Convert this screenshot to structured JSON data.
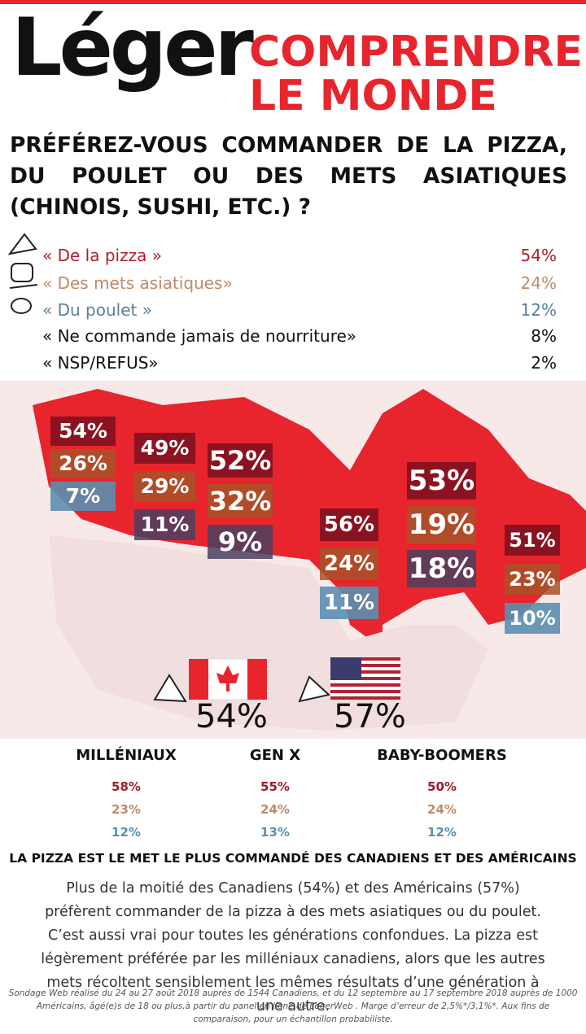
{
  "header": {
    "logo": "Léger",
    "tagline": [
      "COMPRENDRE",
      "LE MONDE"
    ]
  },
  "question": "PRÉFÉREZ-VOUS COMMANDER DE LA PIZZA, DU POULET OU DES METS ASIATIQUES (CHINOIS, SUSHI, ETC.) ?",
  "answers": [
    {
      "label": "« De la pizza »",
      "value": "54%"
    },
    {
      "label": "« Des mets asiatiques»",
      "value": "24%"
    },
    {
      "label": "« Du poulet »",
      "value": "12%"
    },
    {
      "label": "« Ne commande jamais de nourriture»",
      "value": "8%"
    },
    {
      "label": "« NSP/REFUS»",
      "value": "2%"
    }
  ],
  "regions": [
    [
      "54%",
      "26%",
      "7%"
    ],
    [
      "49%",
      "29%",
      "11%"
    ],
    [
      "52%",
      "32%",
      "9%"
    ],
    [
      "56%",
      "24%",
      "11%"
    ],
    [
      "53%",
      "19%",
      "18%"
    ],
    [
      "51%",
      "23%",
      "10%"
    ]
  ],
  "countries": [
    "54%",
    "57%"
  ],
  "generations": [
    {
      "name": "MILLÉNIAUX",
      "values": [
        "58%",
        "23%",
        "12%"
      ]
    },
    {
      "name": "GEN X",
      "values": [
        "55%",
        "24%",
        "13%"
      ]
    },
    {
      "name": "BABY-BOOMERS",
      "values": [
        "50%",
        "24%",
        "12%"
      ]
    }
  ],
  "conclusion": {
    "title": "LA PIZZA EST LE MET LE PLUS COMMANDÉ DES CANADIENS ET DES AMÉRICAINS",
    "text": "Plus de la moitié des Canadiens (54%) et des Américains (57%) préfèrent commander de la pizza à des mets asiatiques ou du poulet. C’est aussi vrai pour toutes les générations confondues. La pizza est légèrement préférée par les milléniaux canadiens, alors que les autres mets récoltent sensiblement les mêmes résultats d’une génération à une autre."
  },
  "footnote": "Sondage Web réalisé du 24 au 27 août 2018 auprès de 1544 Canadiens, et du 12 septembre au 17 septembre 2018 auprès de 1000 Américains, âgé(e)s de 18 ou plus,à partir du panel en ligne de LegerWeb . Marge d’erreur de 2,5%*/3,1%*. Aux fins de comparaison, pour un échantillon probabiliste."
}
